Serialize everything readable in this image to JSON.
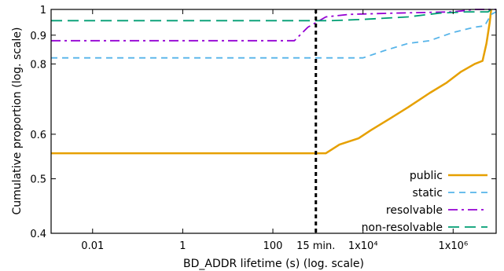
{
  "chart_data": {
    "type": "line",
    "title": "",
    "xlabel": "BD_ADDR lifetime (s) (log. scale)",
    "ylabel": "Cumulative proportion (log. scale)",
    "x_scale": "log",
    "y_scale": "log",
    "xlim": [
      0.0012,
      9000000
    ],
    "ylim": [
      0.4,
      1.0
    ],
    "grid": false,
    "legend_position": "bottom-right",
    "x_ticks": [
      {
        "value": 0.01,
        "label": "0.01"
      },
      {
        "value": 1,
        "label": "1"
      },
      {
        "value": 100,
        "label": "100"
      },
      {
        "value": 900,
        "label": "15 min."
      },
      {
        "value": 10000,
        "label": "1x10⁴"
      },
      {
        "value": 1000000,
        "label": "1x10⁶"
      }
    ],
    "y_ticks": [
      {
        "value": 0.4,
        "label": "0.4"
      },
      {
        "value": 0.5,
        "label": "0.5"
      },
      {
        "value": 0.6,
        "label": "0.6"
      },
      {
        "value": 0.8,
        "label": "0.8"
      },
      {
        "value": 0.9,
        "label": "0.9"
      },
      {
        "value": 1.0,
        "label": "1"
      }
    ],
    "reference_line": {
      "x": 900,
      "label": "15 min.",
      "color": "#000000"
    },
    "series": [
      {
        "name": "public",
        "color": "#e6a000",
        "dash": "solid",
        "points": [
          [
            0.0012,
            0.555
          ],
          [
            1500,
            0.555
          ],
          [
            3000,
            0.575
          ],
          [
            8000,
            0.59
          ],
          [
            15000,
            0.61
          ],
          [
            40000,
            0.64
          ],
          [
            100000,
            0.67
          ],
          [
            300000,
            0.71
          ],
          [
            700000,
            0.74
          ],
          [
            1500000,
            0.775
          ],
          [
            3000000,
            0.8
          ],
          [
            4500000,
            0.81
          ],
          [
            5500000,
            0.87
          ],
          [
            6500000,
            0.95
          ],
          [
            7000000,
            1.0
          ]
        ]
      },
      {
        "name": "static",
        "color": "#56b4e9",
        "dash": "dashed",
        "points": [
          [
            0.0012,
            0.82
          ],
          [
            10000,
            0.82
          ],
          [
            30000,
            0.845
          ],
          [
            100000,
            0.87
          ],
          [
            300000,
            0.88
          ],
          [
            1000000,
            0.91
          ],
          [
            3000000,
            0.93
          ],
          [
            5000000,
            0.935
          ],
          [
            7000000,
            0.98
          ],
          [
            9000000,
            0.99
          ]
        ]
      },
      {
        "name": "resolvable",
        "color": "#9400d3",
        "dash": "dashdot",
        "points": [
          [
            0.0012,
            0.88
          ],
          [
            300,
            0.88
          ],
          [
            600,
            0.93
          ],
          [
            1500,
            0.97
          ],
          [
            5000,
            0.98
          ],
          [
            50000,
            0.985
          ],
          [
            1000000,
            0.99
          ],
          [
            3000000,
            1.0
          ],
          [
            9000000,
            1.0
          ]
        ]
      },
      {
        "name": "non-resolvable",
        "color": "#009e73",
        "dash": "longdash",
        "points": [
          [
            0.0012,
            0.955
          ],
          [
            2000,
            0.955
          ],
          [
            10000,
            0.96
          ],
          [
            100000,
            0.97
          ],
          [
            500000,
            0.985
          ],
          [
            2000000,
            0.99
          ],
          [
            6000000,
            0.99
          ],
          [
            7000000,
            1.0
          ],
          [
            9000000,
            1.0
          ]
        ]
      }
    ]
  }
}
